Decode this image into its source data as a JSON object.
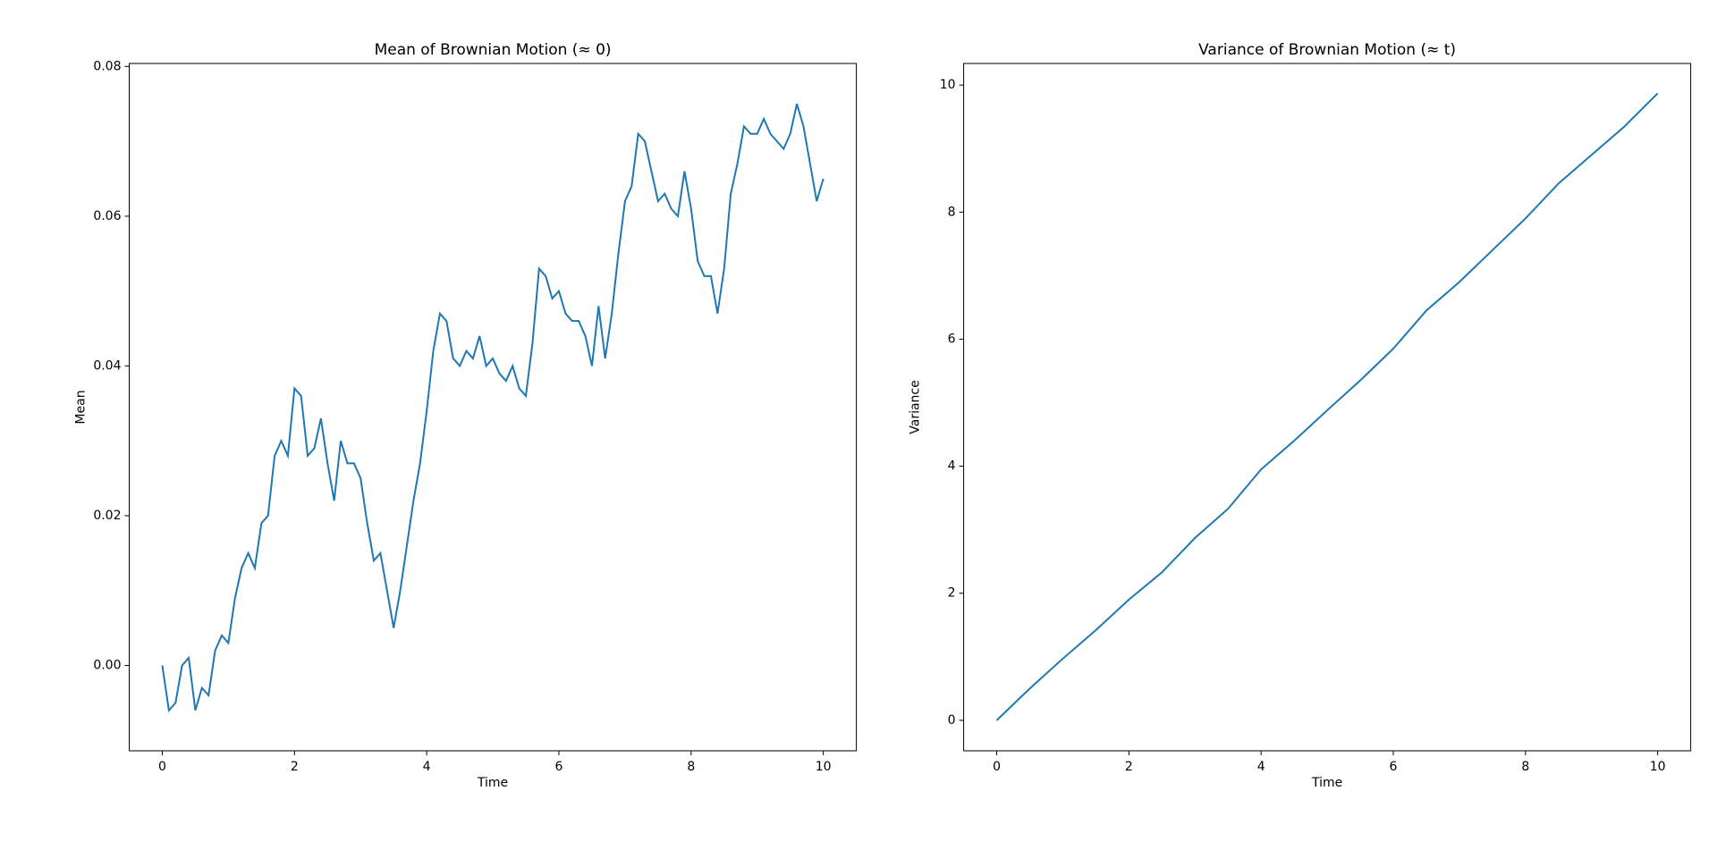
{
  "chart_data": [
    {
      "type": "line",
      "title": "Mean of Brownian Motion (≈ 0)",
      "x_label": "Time",
      "y_label": "Mean",
      "x": [
        0,
        0.1,
        0.2,
        0.3,
        0.4,
        0.5,
        0.6,
        0.7,
        0.8,
        0.9,
        1,
        1.1,
        1.2,
        1.3,
        1.4,
        1.5,
        1.6,
        1.7,
        1.8,
        1.9,
        2,
        2.1,
        2.2,
        2.3,
        2.4,
        2.5,
        2.6,
        2.7,
        2.8,
        2.9,
        3,
        3.1,
        3.2,
        3.3,
        3.4,
        3.5,
        3.6,
        3.7,
        3.8,
        3.9,
        4,
        4.1,
        4.2,
        4.3,
        4.4,
        4.5,
        4.6,
        4.7,
        4.8,
        4.9,
        5,
        5.1,
        5.2,
        5.3,
        5.4,
        5.5,
        5.6,
        5.7,
        5.8,
        5.9,
        6,
        6.1,
        6.2,
        6.3,
        6.4,
        6.5,
        6.6,
        6.7,
        6.8,
        6.9,
        7,
        7.1,
        7.2,
        7.3,
        7.4,
        7.5,
        7.6,
        7.7,
        7.8,
        7.9,
        8,
        8.1,
        8.2,
        8.3,
        8.4,
        8.5,
        8.6,
        8.7,
        8.8,
        8.9,
        9,
        9.1,
        9.2,
        9.3,
        9.4,
        9.5,
        9.6,
        9.7,
        9.8,
        9.9,
        10
      ],
      "series": [
        {
          "name": "Mean",
          "color": "#1f77b4",
          "values": [
            0,
            -0.006,
            -0.005,
            0.0,
            0.001,
            -0.006,
            -0.003,
            -0.004,
            0.002,
            0.004,
            0.003,
            0.009,
            0.013,
            0.015,
            0.013,
            0.019,
            0.02,
            0.028,
            0.03,
            0.028,
            0.037,
            0.036,
            0.028,
            0.029,
            0.033,
            0.027,
            0.022,
            0.03,
            0.027,
            0.027,
            0.025,
            0.019,
            0.014,
            0.015,
            0.01,
            0.005,
            0.01,
            0.016,
            0.022,
            0.027,
            0.034,
            0.042,
            0.047,
            0.046,
            0.041,
            0.04,
            0.042,
            0.041,
            0.044,
            0.04,
            0.041,
            0.039,
            0.038,
            0.04,
            0.037,
            0.036,
            0.043,
            0.053,
            0.052,
            0.049,
            0.05,
            0.047,
            0.046,
            0.046,
            0.044,
            0.04,
            0.048,
            0.041,
            0.047,
            0.055,
            0.062,
            0.064,
            0.071,
            0.07,
            0.066,
            0.062,
            0.063,
            0.061,
            0.06,
            0.066,
            0.061,
            0.054,
            0.052,
            0.052,
            0.047,
            0.053,
            0.063,
            0.067,
            0.072,
            0.071,
            0.071,
            0.073,
            0.071,
            0.07,
            0.069,
            0.071,
            0.075,
            0.072,
            0.067,
            0.062,
            0.065
          ]
        }
      ],
      "xlim": [
        -0.5,
        10.5
      ],
      "xticks": [
        0,
        2,
        4,
        6,
        8,
        10
      ],
      "ylim": [
        -0.0114,
        0.0804
      ],
      "yticks": [
        {
          "value": 0,
          "label": "0.00"
        },
        0.02,
        0.04,
        0.06,
        0.08
      ]
    },
    {
      "type": "line",
      "title": "Variance of Brownian Motion (≈ t)",
      "x_label": "Time",
      "y_label": "Variance",
      "x": [
        0,
        0.5,
        1,
        1.5,
        2,
        2.5,
        3,
        3.5,
        4,
        4.5,
        5,
        5.5,
        6,
        6.5,
        7,
        7.5,
        8,
        8.5,
        9,
        9.5,
        10
      ],
      "series": [
        {
          "name": "Variance",
          "color": "#1f77b4",
          "values": [
            0,
            0.5,
            0.97,
            1.42,
            1.9,
            2.33,
            2.87,
            3.33,
            3.95,
            4.4,
            4.88,
            5.35,
            5.85,
            6.45,
            6.9,
            7.4,
            7.9,
            8.45,
            8.9,
            9.35,
            9.87
          ]
        }
      ],
      "xlim": [
        -0.5,
        10.5
      ],
      "xticks": [
        0,
        2,
        4,
        6,
        8,
        10
      ],
      "ylim": [
        -0.48,
        10.34
      ],
      "yticks": [
        0,
        2,
        4,
        6,
        8,
        10
      ]
    }
  ]
}
